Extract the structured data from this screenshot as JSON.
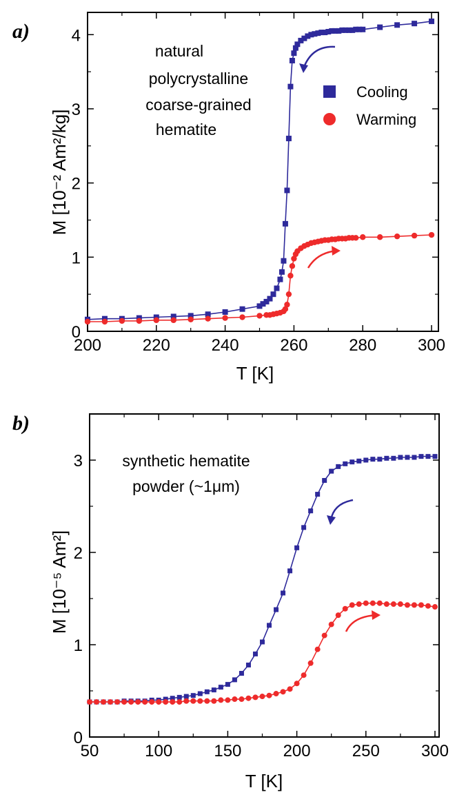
{
  "chart_data": [
    {
      "panel": "a)",
      "type": "line",
      "xlabel": "T [K]",
      "ylabel": "M [10⁻² Am²/kg]",
      "xlim": [
        200,
        302
      ],
      "ylim": [
        0,
        4.3
      ],
      "xticks": [
        200,
        220,
        240,
        260,
        280,
        300
      ],
      "yticks": [
        0,
        1,
        2,
        3,
        4
      ],
      "annotation": [
        "natural",
        "polycrystalline",
        "coarse-grained",
        "hematite"
      ],
      "legend": {
        "position": "right",
        "entries": [
          "Cooling",
          "Warming"
        ]
      },
      "series": [
        {
          "name": "Cooling",
          "color": "#2e2a9b",
          "marker": "square",
          "x": [
            200,
            205,
            210,
            215,
            220,
            225,
            230,
            235,
            240,
            245,
            250,
            251,
            252,
            253,
            254,
            255,
            256,
            256.5,
            257,
            257.5,
            258,
            258.5,
            259,
            259.5,
            260,
            260.5,
            261,
            262,
            263,
            264,
            265,
            266,
            267,
            268,
            269,
            270,
            271,
            272,
            273,
            274,
            275,
            276,
            277,
            278,
            279,
            280,
            285,
            290,
            295,
            300
          ],
          "y": [
            0.16,
            0.17,
            0.17,
            0.18,
            0.19,
            0.2,
            0.21,
            0.23,
            0.26,
            0.3,
            0.34,
            0.37,
            0.4,
            0.44,
            0.5,
            0.58,
            0.7,
            0.8,
            0.95,
            1.45,
            1.9,
            2.6,
            3.3,
            3.65,
            3.75,
            3.82,
            3.87,
            3.92,
            3.95,
            3.98,
            4.0,
            4.01,
            4.02,
            4.03,
            4.03,
            4.04,
            4.05,
            4.05,
            4.05,
            4.06,
            4.06,
            4.06,
            4.06,
            4.07,
            4.07,
            4.07,
            4.1,
            4.13,
            4.15,
            4.18
          ]
        },
        {
          "name": "Warming",
          "color": "#ee2b2b",
          "marker": "circle",
          "x": [
            200,
            205,
            210,
            215,
            220,
            225,
            230,
            235,
            240,
            245,
            250,
            252,
            253,
            254,
            255,
            256,
            257,
            257.5,
            258,
            258.5,
            259,
            259.5,
            260,
            260.5,
            261,
            262,
            263,
            264,
            265,
            266,
            267,
            268,
            269,
            270,
            271,
            272,
            273,
            274,
            275,
            276,
            277,
            278,
            280,
            285,
            290,
            295,
            300
          ],
          "y": [
            0.13,
            0.13,
            0.14,
            0.14,
            0.15,
            0.15,
            0.16,
            0.17,
            0.18,
            0.19,
            0.21,
            0.22,
            0.22,
            0.23,
            0.24,
            0.25,
            0.27,
            0.3,
            0.36,
            0.5,
            0.75,
            0.88,
            0.98,
            1.04,
            1.08,
            1.12,
            1.15,
            1.17,
            1.19,
            1.2,
            1.21,
            1.22,
            1.23,
            1.23,
            1.24,
            1.24,
            1.25,
            1.25,
            1.25,
            1.26,
            1.26,
            1.26,
            1.27,
            1.27,
            1.28,
            1.29,
            1.3
          ]
        }
      ]
    },
    {
      "panel": "b)",
      "type": "line",
      "xlabel": "T [K]",
      "ylabel": "M [10⁻⁵ Am²]",
      "xlim": [
        50,
        303
      ],
      "ylim": [
        0,
        3.5
      ],
      "xticks": [
        50,
        100,
        150,
        200,
        250,
        300
      ],
      "yticks": [
        0,
        1,
        2,
        3
      ],
      "annotation": [
        "synthetic hematite",
        "powder (~1μm)"
      ],
      "series": [
        {
          "name": "Cooling",
          "color": "#2e2a9b",
          "marker": "square",
          "x": [
            50,
            55,
            60,
            65,
            70,
            75,
            80,
            85,
            90,
            95,
            100,
            105,
            110,
            115,
            120,
            125,
            130,
            135,
            140,
            145,
            150,
            155,
            160,
            165,
            170,
            175,
            180,
            185,
            190,
            195,
            200,
            205,
            210,
            215,
            220,
            225,
            230,
            235,
            240,
            245,
            250,
            255,
            260,
            265,
            270,
            275,
            280,
            285,
            290,
            295,
            300
          ],
          "y": [
            0.38,
            0.38,
            0.38,
            0.38,
            0.38,
            0.39,
            0.39,
            0.39,
            0.39,
            0.4,
            0.4,
            0.41,
            0.42,
            0.43,
            0.44,
            0.45,
            0.47,
            0.49,
            0.51,
            0.54,
            0.57,
            0.62,
            0.69,
            0.78,
            0.9,
            1.03,
            1.21,
            1.38,
            1.56,
            1.8,
            2.05,
            2.27,
            2.45,
            2.63,
            2.78,
            2.88,
            2.93,
            2.96,
            2.98,
            2.99,
            3.0,
            3.01,
            3.01,
            3.02,
            3.02,
            3.03,
            3.03,
            3.03,
            3.04,
            3.04,
            3.04
          ]
        },
        {
          "name": "Warming",
          "color": "#ee2b2b",
          "marker": "circle",
          "x": [
            50,
            55,
            60,
            65,
            70,
            75,
            80,
            85,
            90,
            95,
            100,
            105,
            110,
            115,
            120,
            125,
            130,
            135,
            140,
            145,
            150,
            155,
            160,
            165,
            170,
            175,
            180,
            185,
            190,
            195,
            200,
            205,
            210,
            215,
            220,
            225,
            230,
            235,
            240,
            245,
            250,
            255,
            260,
            265,
            270,
            275,
            280,
            285,
            290,
            295,
            300
          ],
          "y": [
            0.38,
            0.38,
            0.38,
            0.38,
            0.38,
            0.38,
            0.38,
            0.38,
            0.38,
            0.38,
            0.38,
            0.38,
            0.38,
            0.38,
            0.39,
            0.39,
            0.39,
            0.39,
            0.39,
            0.4,
            0.4,
            0.41,
            0.41,
            0.42,
            0.43,
            0.44,
            0.45,
            0.47,
            0.49,
            0.52,
            0.58,
            0.67,
            0.8,
            0.95,
            1.1,
            1.22,
            1.32,
            1.39,
            1.43,
            1.44,
            1.45,
            1.45,
            1.45,
            1.44,
            1.44,
            1.44,
            1.43,
            1.43,
            1.43,
            1.42,
            1.41
          ]
        }
      ]
    }
  ]
}
